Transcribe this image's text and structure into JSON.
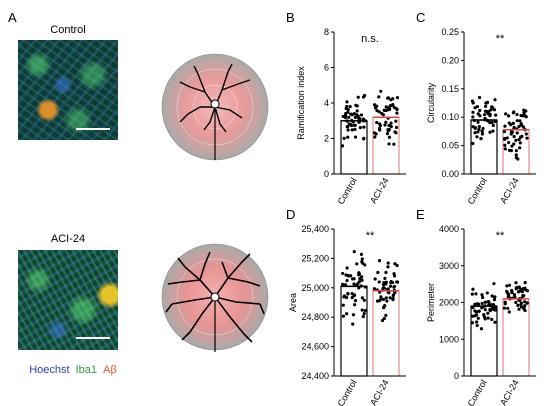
{
  "panel_a": {
    "letter": "A",
    "label_top": "Control",
    "label_bottom": "ACI-24",
    "stains": [
      {
        "text": "Hoechst",
        "color": "#2a3fb0"
      },
      {
        "text": "Iba1",
        "color": "#2e9a3e"
      },
      {
        "text": "Aβ",
        "color": "#e8542a"
      }
    ]
  },
  "chart_data": [
    {
      "id": "B",
      "type": "bar",
      "panel_letter": "B",
      "ylabel": "Ramification index",
      "ylim": [
        0,
        8
      ],
      "yticks": [
        "0",
        "2",
        "4",
        "6",
        "8"
      ],
      "categories": [
        "Control",
        "ACI-24"
      ],
      "values": [
        3.0,
        3.2
      ],
      "significance": "n.s."
    },
    {
      "id": "C",
      "type": "bar",
      "panel_letter": "C",
      "ylabel": "Circularity",
      "ylim": [
        0,
        0.25
      ],
      "yticks": [
        "0.00",
        "0.05",
        "0.10",
        "0.15",
        "0.20",
        "0.25"
      ],
      "categories": [
        "Control",
        "ACI-24"
      ],
      "values": [
        0.095,
        0.078
      ],
      "significance": "**"
    },
    {
      "id": "D",
      "type": "bar",
      "panel_letter": "D",
      "ylabel": "Area",
      "ylim": [
        24400,
        25400
      ],
      "yticks": [
        "24,400",
        "24,600",
        "24,800",
        "25,000",
        "25,200",
        "25,400"
      ],
      "categories": [
        "Control",
        "ACI-24"
      ],
      "values": [
        25010,
        24980
      ],
      "significance": "**"
    },
    {
      "id": "E",
      "type": "bar",
      "panel_letter": "E",
      "ylabel": "Perimeter",
      "ylim": [
        0,
        4000
      ],
      "yticks": [
        "0",
        "1000",
        "2000",
        "3000",
        "4000"
      ],
      "categories": [
        "Control",
        "ACI-24"
      ],
      "values": [
        1900,
        2100
      ],
      "significance": "**"
    }
  ],
  "colors": {
    "control_bar": "#000000",
    "aci_bar": "#e58b8b",
    "points": "#000000"
  }
}
